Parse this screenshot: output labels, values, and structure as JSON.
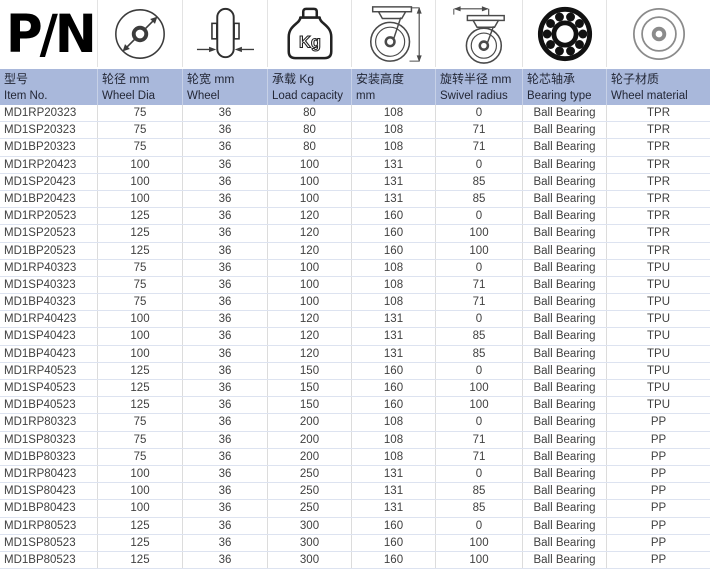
{
  "logo": {
    "text": "P/N"
  },
  "columns": [
    {
      "zh": "型号",
      "en": "Item No.",
      "icon": "pn-logo"
    },
    {
      "zh": "轮径 mm",
      "en": "Wheel Dia",
      "icon": "wheel-diameter-icon"
    },
    {
      "zh": "轮宽  mm",
      "en": "Wheel",
      "icon": "wheel-width-icon"
    },
    {
      "zh": "承载 Kg",
      "en": "Load capacity",
      "icon": "weight-kg-icon"
    },
    {
      "zh": "安装高度",
      "en": "mm",
      "icon": "mounting-height-icon"
    },
    {
      "zh": "旋转半径 mm",
      "en": "Swivel radius",
      "icon": "swivel-radius-icon"
    },
    {
      "zh": "轮芯轴承",
      "en": "Bearing type",
      "icon": "ball-bearing-icon"
    },
    {
      "zh": "轮子材质",
      "en": "Wheel material",
      "icon": "wheel-material-icon"
    }
  ],
  "weight_icon_label": "Kg",
  "rows": [
    [
      "MD1RP20323",
      "75",
      "36",
      "80",
      "108",
      "0",
      "Ball Bearing",
      "TPR"
    ],
    [
      "MD1SP20323",
      "75",
      "36",
      "80",
      "108",
      "71",
      "Ball Bearing",
      "TPR"
    ],
    [
      "MD1BP20323",
      "75",
      "36",
      "80",
      "108",
      "71",
      "Ball Bearing",
      "TPR"
    ],
    [
      "MD1RP20423",
      "100",
      "36",
      "100",
      "131",
      "0",
      "Ball Bearing",
      "TPR"
    ],
    [
      "MD1SP20423",
      "100",
      "36",
      "100",
      "131",
      "85",
      "Ball Bearing",
      "TPR"
    ],
    [
      "MD1BP20423",
      "100",
      "36",
      "100",
      "131",
      "85",
      "Ball Bearing",
      "TPR"
    ],
    [
      "MD1RP20523",
      "125",
      "36",
      "120",
      "160",
      "0",
      "Ball Bearing",
      "TPR"
    ],
    [
      "MD1SP20523",
      "125",
      "36",
      "120",
      "160",
      "100",
      "Ball Bearing",
      "TPR"
    ],
    [
      "MD1BP20523",
      "125",
      "36",
      "120",
      "160",
      "100",
      "Ball Bearing",
      "TPR"
    ],
    [
      "MD1RP40323",
      "75",
      "36",
      "100",
      "108",
      "0",
      "Ball Bearing",
      "TPU"
    ],
    [
      "MD1SP40323",
      "75",
      "36",
      "100",
      "108",
      "71",
      "Ball Bearing",
      "TPU"
    ],
    [
      "MD1BP40323",
      "75",
      "36",
      "100",
      "108",
      "71",
      "Ball Bearing",
      "TPU"
    ],
    [
      "MD1RP40423",
      "100",
      "36",
      "120",
      "131",
      "0",
      "Ball Bearing",
      "TPU"
    ],
    [
      "MD1SP40423",
      "100",
      "36",
      "120",
      "131",
      "85",
      "Ball Bearing",
      "TPU"
    ],
    [
      "MD1BP40423",
      "100",
      "36",
      "120",
      "131",
      "85",
      "Ball Bearing",
      "TPU"
    ],
    [
      "MD1RP40523",
      "125",
      "36",
      "150",
      "160",
      "0",
      "Ball Bearing",
      "TPU"
    ],
    [
      "MD1SP40523",
      "125",
      "36",
      "150",
      "160",
      "100",
      "Ball Bearing",
      "TPU"
    ],
    [
      "MD1BP40523",
      "125",
      "36",
      "150",
      "160",
      "100",
      "Ball Bearing",
      "TPU"
    ],
    [
      "MD1RP80323",
      "75",
      "36",
      "200",
      "108",
      "0",
      "Ball Bearing",
      "PP"
    ],
    [
      "MD1SP80323",
      "75",
      "36",
      "200",
      "108",
      "71",
      "Ball Bearing",
      "PP"
    ],
    [
      "MD1BP80323",
      "75",
      "36",
      "200",
      "108",
      "71",
      "Ball Bearing",
      "PP"
    ],
    [
      "MD1RP80423",
      "100",
      "36",
      "250",
      "131",
      "0",
      "Ball Bearing",
      "PP"
    ],
    [
      "MD1SP80423",
      "100",
      "36",
      "250",
      "131",
      "85",
      "Ball Bearing",
      "PP"
    ],
    [
      "MD1BP80423",
      "100",
      "36",
      "250",
      "131",
      "85",
      "Ball Bearing",
      "PP"
    ],
    [
      "MD1RP80523",
      "125",
      "36",
      "300",
      "160",
      "0",
      "Ball Bearing",
      "PP"
    ],
    [
      "MD1SP80523",
      "125",
      "36",
      "300",
      "160",
      "100",
      "Ball Bearing",
      "PP"
    ],
    [
      "MD1BP80523",
      "125",
      "36",
      "300",
      "160",
      "100",
      "Ball Bearing",
      "PP"
    ]
  ],
  "colors": {
    "header_background": "#a9b8db",
    "header_text": "#232736",
    "body_text": "#404040",
    "horizontal_gridline": "#dde3f0",
    "vertical_gridline": "#dcdcdc",
    "icon_stroke": "#3c3c3c",
    "bearing_black": "#111111",
    "wheel_material_gray": "#8b8b8b"
  }
}
